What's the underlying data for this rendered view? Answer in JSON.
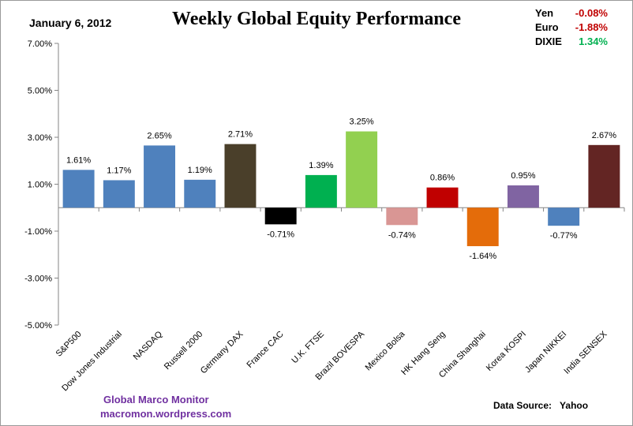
{
  "header": {
    "date": "January 6, 2012",
    "title": "Weekly Global Equity Performance"
  },
  "currencies": [
    {
      "label": "Yen",
      "value": "-0.08%",
      "color": "#c00000"
    },
    {
      "label": "Euro",
      "value": "-1.88%",
      "color": "#c00000"
    },
    {
      "label": "DIXIE",
      "value": "1.34%",
      "color": "#00b050"
    }
  ],
  "footer": {
    "credit_line1": "Global  Marco  Monitor",
    "credit_line2": "macromon.wordpress.com",
    "source_label": "Data Source:",
    "source_value": "Yahoo"
  },
  "chart_data": {
    "type": "bar",
    "title": "Weekly Global Equity Performance",
    "xlabel": "",
    "ylabel": "",
    "ylim": [
      -5,
      7
    ],
    "yticks": [
      7,
      5,
      3,
      1,
      -1,
      -3,
      -5
    ],
    "ytick_labels": [
      "7.00%",
      "5.00%",
      "3.00%",
      "1.00%",
      "-1.00%",
      "-3.00%",
      "-5.00%"
    ],
    "categories": [
      "S&P500",
      "Dow Jones Industrial",
      "NASDAQ",
      "Russell 2000",
      "Germany DAX",
      "France CAC",
      "U.K. FTSE",
      "Brazil BOVESPA",
      "Mexico Bolsa",
      "HK Hang Seng",
      "China Shanghai",
      "Korea KOSPI",
      "Japan NIKKEI",
      "India SENSEX"
    ],
    "values": [
      1.61,
      1.17,
      2.65,
      1.19,
      2.71,
      -0.71,
      1.39,
      3.25,
      -0.74,
      0.86,
      -1.64,
      0.95,
      -0.77,
      2.67
    ],
    "value_labels": [
      "1.61%",
      "1.17%",
      "2.65%",
      "1.19%",
      "2.71%",
      "-0.71%",
      "1.39%",
      "3.25%",
      "-0.74%",
      "0.86%",
      "-1.64%",
      "0.95%",
      "-0.77%",
      "2.67%"
    ],
    "colors": [
      "#4f81bd",
      "#4f81bd",
      "#4f81bd",
      "#4f81bd",
      "#4a3f2a",
      "#000000",
      "#00b050",
      "#92d050",
      "#d99694",
      "#c00000",
      "#e46c0a",
      "#8064a2",
      "#4f81bd",
      "#632523"
    ]
  }
}
